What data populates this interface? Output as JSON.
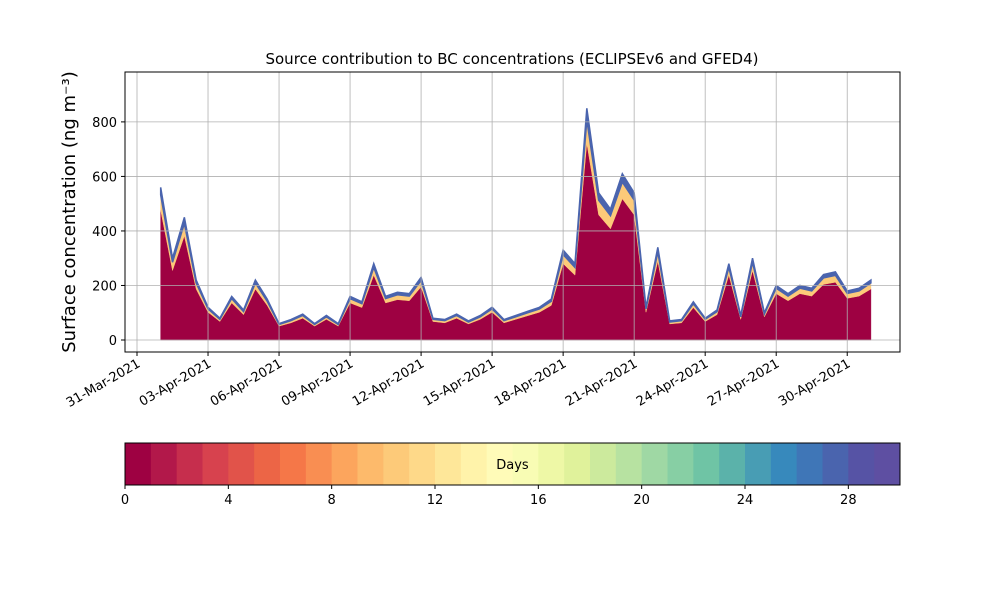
{
  "chart_data": {
    "type": "stacked_area",
    "title": "Source contribution to BC concentrations (ECLIPSEv6 and GFED4)",
    "y_label": "Surface concentration (ng m⁻³)",
    "x": [
      "2021-04-01T00:00",
      "2021-04-01T12:00",
      "2021-04-02T00:00",
      "2021-04-02T12:00",
      "2021-04-03T00:00",
      "2021-04-03T12:00",
      "2021-04-04T00:00",
      "2021-04-04T12:00",
      "2021-04-05T00:00",
      "2021-04-05T12:00",
      "2021-04-06T00:00",
      "2021-04-06T12:00",
      "2021-04-07T00:00",
      "2021-04-07T12:00",
      "2021-04-08T00:00",
      "2021-04-08T12:00",
      "2021-04-09T00:00",
      "2021-04-09T12:00",
      "2021-04-10T00:00",
      "2021-04-10T12:00",
      "2021-04-11T00:00",
      "2021-04-11T12:00",
      "2021-04-12T00:00",
      "2021-04-12T12:00",
      "2021-04-13T00:00",
      "2021-04-13T12:00",
      "2021-04-14T00:00",
      "2021-04-14T12:00",
      "2021-04-15T00:00",
      "2021-04-15T12:00",
      "2021-04-16T00:00",
      "2021-04-16T12:00",
      "2021-04-17T00:00",
      "2021-04-17T12:00",
      "2021-04-18T00:00",
      "2021-04-18T12:00",
      "2021-04-19T00:00",
      "2021-04-19T12:00",
      "2021-04-20T00:00",
      "2021-04-20T12:00",
      "2021-04-21T00:00",
      "2021-04-21T12:00",
      "2021-04-22T00:00",
      "2021-04-22T12:00",
      "2021-04-23T00:00",
      "2021-04-23T12:00",
      "2021-04-24T00:00",
      "2021-04-24T12:00",
      "2021-04-25T00:00",
      "2021-04-25T12:00",
      "2021-04-26T00:00",
      "2021-04-26T12:00",
      "2021-04-27T00:00",
      "2021-04-27T12:00",
      "2021-04-28T00:00",
      "2021-04-28T12:00",
      "2021-04-29T00:00",
      "2021-04-29T12:00",
      "2021-04-30T00:00",
      "2021-04-30T12:00",
      "2021-05-01T00:00"
    ],
    "series": [
      {
        "color": "#9e0142",
        "values": [
          476,
          255,
          382,
          187,
          102,
          68,
          136,
          93,
          187,
          127,
          51,
          63,
          80,
          51,
          76,
          51,
          136,
          119,
          238,
          136,
          148,
          144,
          195,
          68,
          63,
          80,
          59,
          76,
          102,
          63,
          76,
          89,
          102,
          127,
          280,
          238,
          722,
          459,
          408,
          518,
          459,
          102,
          289,
          59,
          63,
          119,
          68,
          93,
          238,
          76,
          255,
          85,
          170,
          144,
          170,
          161,
          204,
          212,
          153,
          161,
          187
        ]
      },
      {
        "color": "#fdca79",
        "values": [
          56,
          30,
          45,
          22,
          12,
          8,
          16,
          11,
          22,
          15,
          6,
          8,
          10,
          6,
          9,
          6,
          16,
          14,
          28,
          16,
          18,
          17,
          23,
          8,
          8,
          10,
          7,
          9,
          12,
          8,
          9,
          11,
          12,
          15,
          33,
          28,
          85,
          54,
          48,
          61,
          54,
          12,
          34,
          7,
          8,
          14,
          8,
          11,
          28,
          9,
          30,
          10,
          20,
          17,
          20,
          19,
          24,
          25,
          18,
          19,
          22
        ]
      },
      {
        "color": "#4a64ae",
        "values": [
          28,
          15,
          23,
          11,
          6,
          4,
          8,
          6,
          11,
          8,
          3,
          4,
          5,
          3,
          5,
          3,
          8,
          7,
          14,
          8,
          9,
          9,
          12,
          4,
          4,
          5,
          4,
          5,
          6,
          4,
          5,
          5,
          6,
          8,
          17,
          14,
          43,
          27,
          24,
          31,
          27,
          6,
          17,
          4,
          4,
          7,
          4,
          6,
          14,
          5,
          15,
          5,
          10,
          9,
          10,
          10,
          12,
          13,
          9,
          10,
          11
        ]
      }
    ],
    "xlim": [
      "2021-03-30T11:50",
      "2021-05-02T05:30"
    ],
    "xticks": [
      {
        "value": "2021-03-31T00:00",
        "label": "31-Mar-2021"
      },
      {
        "value": "2021-04-03T00:00",
        "label": "03-Apr-2021"
      },
      {
        "value": "2021-04-06T00:00",
        "label": "06-Apr-2021"
      },
      {
        "value": "2021-04-09T00:00",
        "label": "09-Apr-2021"
      },
      {
        "value": "2021-04-12T00:00",
        "label": "12-Apr-2021"
      },
      {
        "value": "2021-04-15T00:00",
        "label": "15-Apr-2021"
      },
      {
        "value": "2021-04-18T00:00",
        "label": "18-Apr-2021"
      },
      {
        "value": "2021-04-21T00:00",
        "label": "21-Apr-2021"
      },
      {
        "value": "2021-04-24T00:00",
        "label": "24-Apr-2021"
      },
      {
        "value": "2021-04-27T00:00",
        "label": "27-Apr-2021"
      },
      {
        "value": "2021-04-30T00:00",
        "label": "30-Apr-2021"
      }
    ],
    "ylim": [
      -44,
      983
    ],
    "yticks": [
      0,
      200,
      400,
      600,
      800
    ],
    "grid": true,
    "colorbar": {
      "label": "Days",
      "lim": [
        0,
        30
      ],
      "ticks": [
        0,
        4,
        8,
        12,
        16,
        20,
        24,
        28
      ],
      "colors": [
        "#9e0142",
        "#b2184a",
        "#c62e4d",
        "#d7424e",
        "#e1534a",
        "#ec6546",
        "#f57748",
        "#f98e52",
        "#fca55d",
        "#fdba6b",
        "#fdca79",
        "#fed989",
        "#fee799",
        "#fff3aa",
        "#fffbb8",
        "#f8fcb4",
        "#eef8a6",
        "#e0f29b",
        "#ccea9d",
        "#b7e2a1",
        "#9fd8a4",
        "#87cfa4",
        "#6fc4a5",
        "#5bb2aa",
        "#489db4",
        "#3789bc",
        "#3f76b7",
        "#4a64ae",
        "#5653a5",
        "#5e4fa2"
      ]
    }
  }
}
